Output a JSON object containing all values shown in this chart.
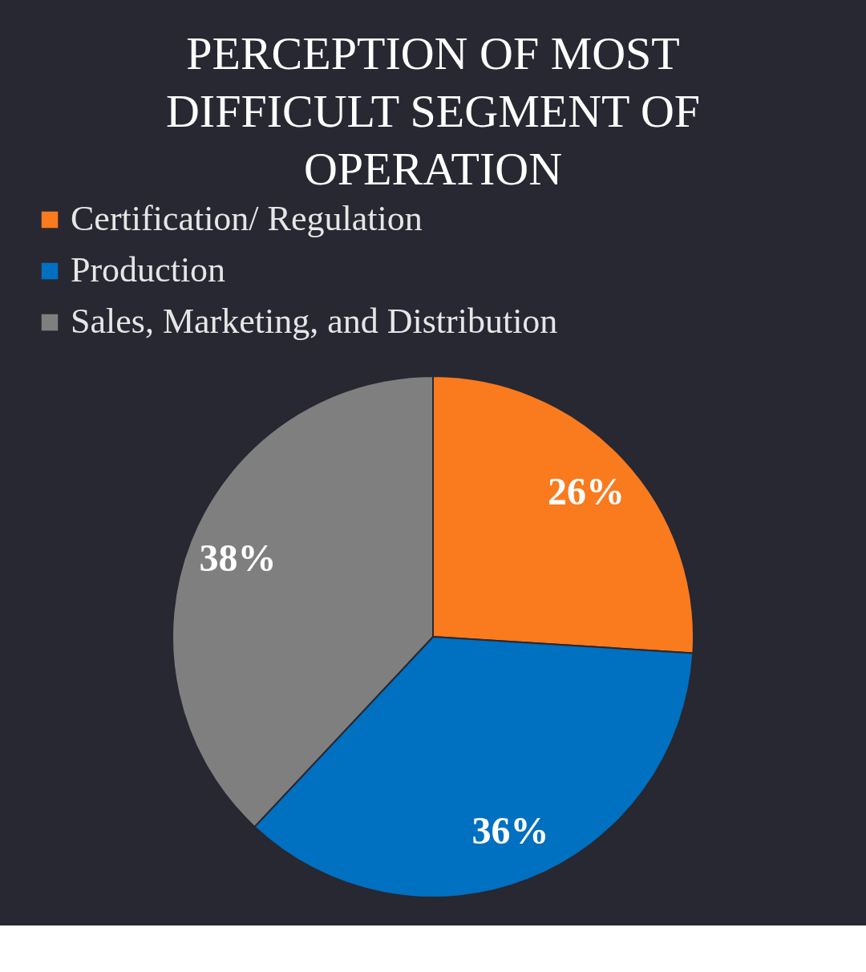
{
  "chart_data": {
    "type": "pie",
    "title": "PERCEPTION OF MOST DIFFICULT SEGMENT OF OPERATION",
    "categories": [
      "Certification/ Regulation",
      "Production",
      "Sales, Marketing, and Distribution"
    ],
    "values": [
      26,
      36,
      38
    ],
    "colors": [
      "#fa7a1e",
      "#0070c0",
      "#7f7f7f"
    ],
    "value_labels": [
      "26%",
      "36%",
      "38%"
    ],
    "legend": "top"
  }
}
